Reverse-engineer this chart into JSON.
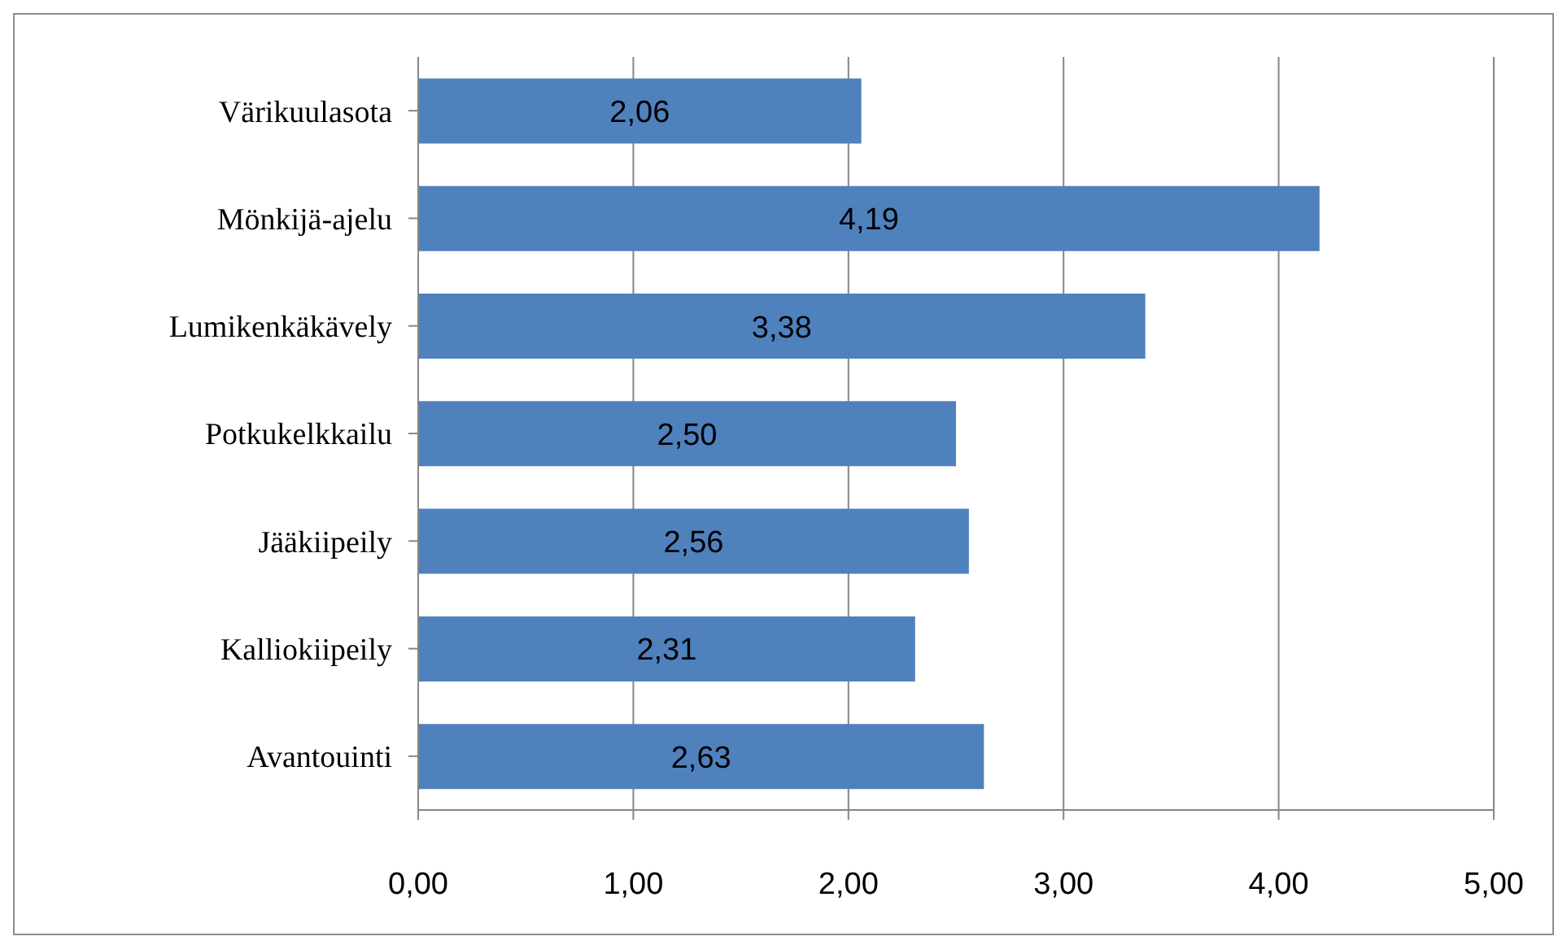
{
  "chart_data": {
    "type": "bar",
    "orientation": "horizontal",
    "categories": [
      "Värikuulasota",
      "Mönkijä-ajelu",
      "Lumikenkäkävely",
      "Potkukelkkailu",
      "Jääkiipeily",
      "Kalliokiipeily",
      "Avantouinti"
    ],
    "values": [
      2.06,
      4.19,
      3.38,
      2.5,
      2.56,
      2.31,
      2.63
    ],
    "value_labels": [
      "2,06",
      "4,19",
      "3,38",
      "2,50",
      "2,56",
      "2,31",
      "2,63"
    ],
    "color": "#4f81bd",
    "xlim": [
      0,
      5
    ],
    "xticks": [
      {
        "value": 0,
        "label": "0,00"
      },
      {
        "value": 1,
        "label": "1,00"
      },
      {
        "value": 2,
        "label": "2,00"
      },
      {
        "value": 3,
        "label": "3,00"
      },
      {
        "value": 4,
        "label": "4,00"
      },
      {
        "value": 5,
        "label": "5,00"
      }
    ],
    "grid": "x",
    "legend": false
  }
}
